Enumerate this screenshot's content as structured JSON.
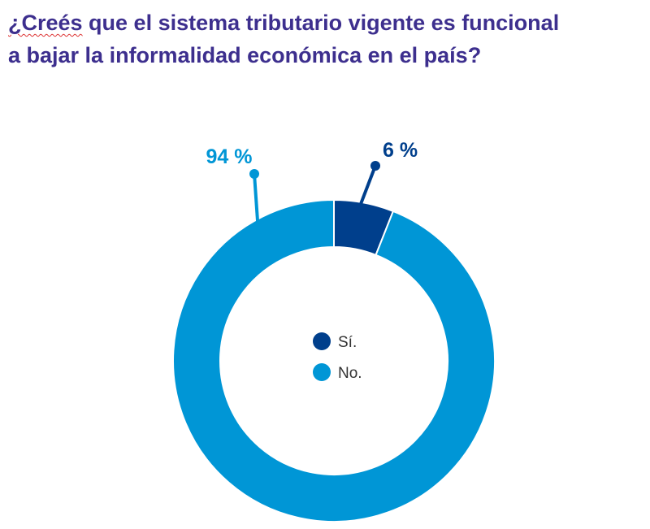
{
  "chart_data": {
    "type": "pie",
    "subtype": "donut",
    "title_line1_word1": "¿Creés",
    "title_line1_rest": " que el sistema tributario vigente es funcional",
    "title_line2": "a bajar la informalidad económica en el país?",
    "categories": [
      "Sí.",
      "No."
    ],
    "values": [
      6,
      94
    ],
    "data_labels": [
      "6 %",
      "94 %"
    ],
    "colors": [
      "#003f8c",
      "#0096d6"
    ],
    "title_color": "#3d2f8e",
    "legend_placement": "center"
  }
}
